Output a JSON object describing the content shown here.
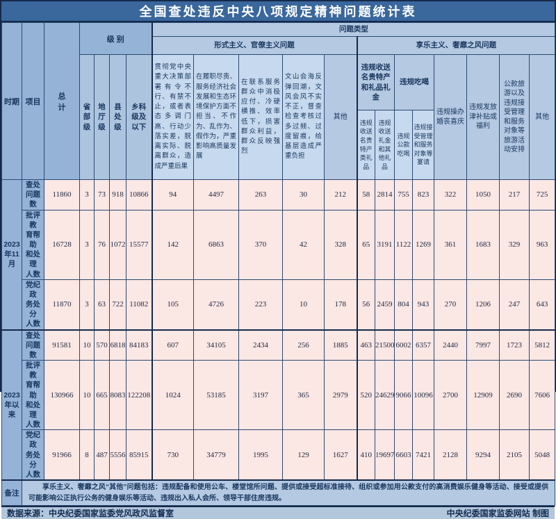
{
  "title": "全国查处违反中央八项规定精神问题统计表",
  "header": {
    "period": "时期",
    "item": "项目",
    "total": "总\n计",
    "level_group": "级 别",
    "levels": [
      "省\n部\n级",
      "地\n厅\n级",
      "县\n处\n级",
      "乡科\n级及\n以下"
    ],
    "problem_type": "问题类型",
    "formalism_group": "形式主义、官僚主义问题",
    "hedonism_group": "享乐主义、奢靡之风问题",
    "formalism_cols": [
      "贯彻党中央重大决策部署有令不行、有禁不止，或者表态多调门高、行动少落实差，脱离实际、脱离群众，造成严重后果",
      "在履职尽责、服务经济社会发展和生态环境保护方面不担当、不作为、乱作为、假作为，严重影响高质量发展",
      "在联系服务群众中消极应付、冷硬横推、效率低下，损害群众利益，群众反映强烈",
      "文山会海反弹回潮，文风会风不实不正，督查检查考核过多过频、过度留痕，给基层造成严重负担",
      "其他"
    ],
    "gift_group": "违规收送名贵特产和礼品礼金",
    "gift_cols": [
      "违规收送名贵特产类礼品",
      "违规收送礼金和其他礼品"
    ],
    "dining_group": "违规吃喝",
    "dining_cols": [
      "违规公款吃喝",
      "违规接受管理和服务对象等宴请"
    ],
    "hedonism_cols": [
      "违规操办婚丧喜庆",
      "违规发放津补贴或福利",
      "公款旅游以及违规接受管理和服务对象等旅游活动安排",
      "其他"
    ]
  },
  "periods": [
    "2023\n年11\n月",
    "2023\n年以\n来"
  ],
  "rows": [
    {
      "label": "查处\n问题数",
      "values": [
        "11860",
        "3",
        "73",
        "918",
        "10866",
        "94",
        "4497",
        "263",
        "30",
        "212",
        "58",
        "2814",
        "755",
        "823",
        "322",
        "1050",
        "217",
        "725"
      ]
    },
    {
      "label": "批评教\n育帮助\n和处理\n人数",
      "values": [
        "16728",
        "3",
        "76",
        "1072",
        "15577",
        "142",
        "6863",
        "370",
        "42",
        "328",
        "65",
        "3191",
        "1122",
        "1269",
        "361",
        "1683",
        "329",
        "963"
      ]
    },
    {
      "label": "党纪政\n务处分\n人数",
      "values": [
        "11870",
        "3",
        "63",
        "722",
        "11082",
        "105",
        "4726",
        "223",
        "10",
        "178",
        "56",
        "2459",
        "804",
        "943",
        "270",
        "1206",
        "247",
        "643"
      ]
    },
    {
      "label": "查处\n问题数",
      "values": [
        "91581",
        "10",
        "570",
        "6818",
        "84183",
        "607",
        "34105",
        "2434",
        "256",
        "1885",
        "463",
        "21500",
        "6002",
        "6357",
        "2440",
        "7997",
        "1723",
        "5812"
      ]
    },
    {
      "label": "批评教\n育帮助\n和处理\n人数",
      "values": [
        "130966",
        "10",
        "665",
        "8083",
        "122208",
        "1024",
        "53185",
        "3197",
        "365",
        "2979",
        "520",
        "24629",
        "9066",
        "10096",
        "2700",
        "12909",
        "2690",
        "7606"
      ]
    },
    {
      "label": "党纪政\n务处分\n人数",
      "values": [
        "91966",
        "8",
        "487",
        "5556",
        "85915",
        "730",
        "34779",
        "1995",
        "129",
        "1627",
        "410",
        "19697",
        "6603",
        "7421",
        "2128",
        "9294",
        "2105",
        "5048"
      ]
    }
  ],
  "remark_label": "备注",
  "remark": "享乐主义、奢靡之风“其他”问题包括：违规配备和使用公车、楼堂馆所问题、提供或接受超标准接待、组织或参加用公款支付的高消费娱乐健身等活动、接受或提供可能影响公正执行公务的健身娱乐等活动、违规出入私人会所、领导干部住房违规。",
  "footer": {
    "source": "数据来源：中央纪委国家监委党风政风监督室",
    "credit": "中央纪委国家监委网站 制图"
  },
  "colors": {
    "title_bg": "#3a679c",
    "border_dark": "#16294a",
    "header_mid_blue": "#95b3d7",
    "header_light_blue": "#b5c9e2",
    "desc_blue": "#c7d9ee",
    "data_pink": "#fbe7e4",
    "footer_band": "#b2c6dc"
  }
}
